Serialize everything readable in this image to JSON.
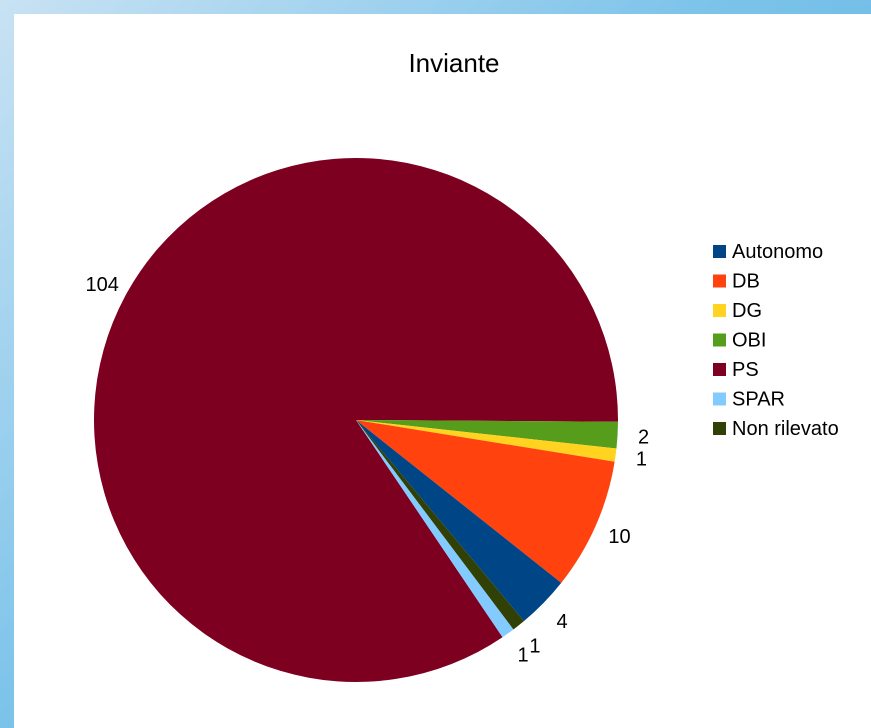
{
  "chart_data": {
    "type": "pie",
    "title": "Inviante",
    "slices": [
      {
        "label": "Autonomo",
        "value": 4,
        "color": "#004586"
      },
      {
        "label": "DB",
        "value": 10,
        "color": "#ff420e"
      },
      {
        "label": "DG",
        "value": 1,
        "color": "#ffd320"
      },
      {
        "label": "OBI",
        "value": 2,
        "color": "#579d1c"
      },
      {
        "label": "PS",
        "value": 104,
        "color": "#7e0021"
      },
      {
        "label": "SPAR",
        "value": 1,
        "color": "#83caff"
      },
      {
        "label": "Non rilevato",
        "value": 1,
        "color": "#314004"
      }
    ],
    "slice_order": [
      "PS",
      "OBI",
      "DG",
      "DB",
      "Autonomo",
      "Non rilevato",
      "SPAR"
    ],
    "legend_position": "right",
    "data_labels": "values"
  }
}
